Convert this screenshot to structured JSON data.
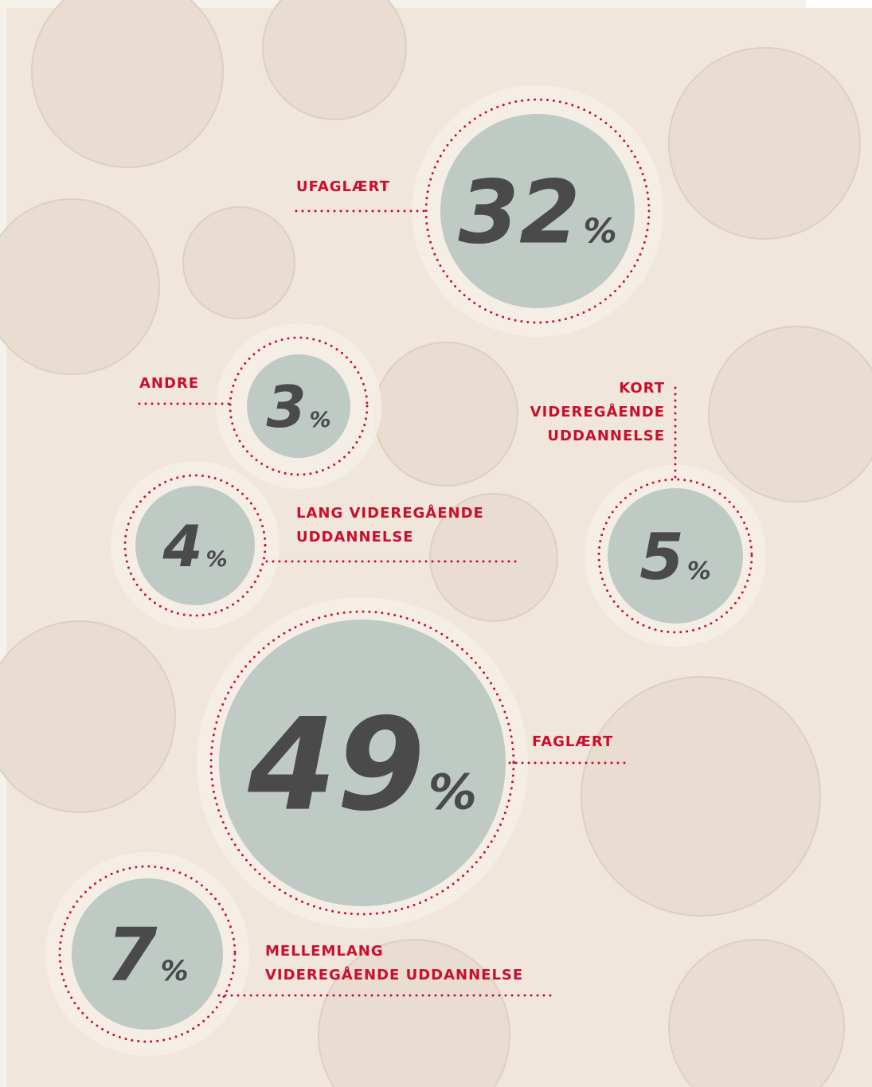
{
  "unit": "%",
  "items": [
    {
      "value": 32,
      "label": [
        "UFAGLÆRT"
      ]
    },
    {
      "value": 3,
      "label": [
        "ANDRE"
      ]
    },
    {
      "value": 5,
      "label": [
        "KORT",
        "VIDEREGÅENDE",
        "UDDANNELSE"
      ]
    },
    {
      "value": 4,
      "label": [
        "LANG VIDEREGÅENDE",
        "UDDANNELSE"
      ]
    },
    {
      "value": 49,
      "label": [
        "FAGLÆRT"
      ]
    },
    {
      "value": 7,
      "label": [
        "MELLEMLANG",
        "VIDEREGÅENDE UDDANNELSE"
      ]
    }
  ]
}
